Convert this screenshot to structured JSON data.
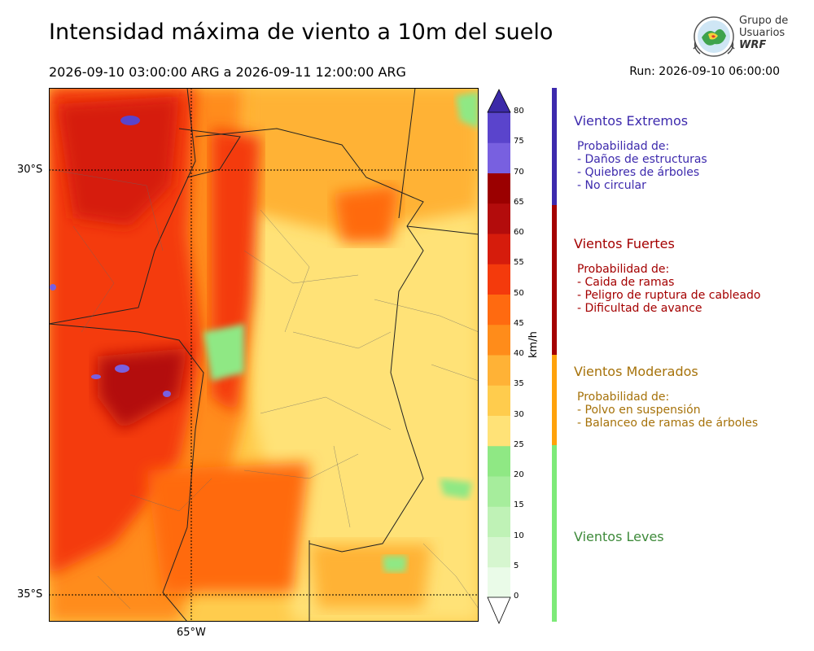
{
  "title": "Intensidad máxima de viento a 10m del suelo",
  "period": "2026-09-10 03:00:00 ARG  a  2026-09-11 12:00:00 ARG",
  "run": "Run: 2026-09-10 06:00:00",
  "logo": {
    "line1": "Grupo de",
    "line2": "Usuarios",
    "line3": "WRF"
  },
  "map": {
    "lat_labels": [
      "30°S",
      "35°S"
    ],
    "lon_labels": [
      "65°W"
    ],
    "palette": {
      "0": "#eafbe8",
      "5": "#d6f6cf",
      "10": "#bff2b6",
      "15": "#a6ed9c",
      "20": "#8fe884",
      "25": "#ffe277",
      "30": "#ffcc4d",
      "35": "#ffb236",
      "40": "#ff8c1a",
      "45": "#ff6a10",
      "50": "#f43a0c",
      "55": "#d61c0c",
      "60": "#b30c0c",
      "65": "#9b0000",
      "70": "#7860e0",
      "75": "#5a44cc",
      "80": "#3c2aa8"
    }
  },
  "colorbar": {
    "unit": "km/h",
    "ticks": [
      "0",
      "5",
      "10",
      "15",
      "20",
      "25",
      "30",
      "35",
      "40",
      "45",
      "50",
      "55",
      "60",
      "65",
      "70",
      "75",
      "80"
    ]
  },
  "categories": [
    {
      "title": "Vientos Extremos",
      "color": "#3d2aad",
      "desc": "Probabilidad de:\n- Daños de estructuras\n- Quiebres de árboles\n- No circular"
    },
    {
      "title": "Vientos Fuertes",
      "color": "#a40000",
      "desc": "Probabilidad de:\n- Caida de ramas\n- Peligro de ruptura de cableado\n- Dificultad de avance"
    },
    {
      "title": "Vientos Moderados",
      "color": "#a6720a",
      "desc": "Probabilidad de:\n- Polvo en suspensión\n- Balanceo de ramas de árboles"
    },
    {
      "title": "Vientos Leves",
      "color": "#3e8a3a",
      "desc": ""
    }
  ]
}
